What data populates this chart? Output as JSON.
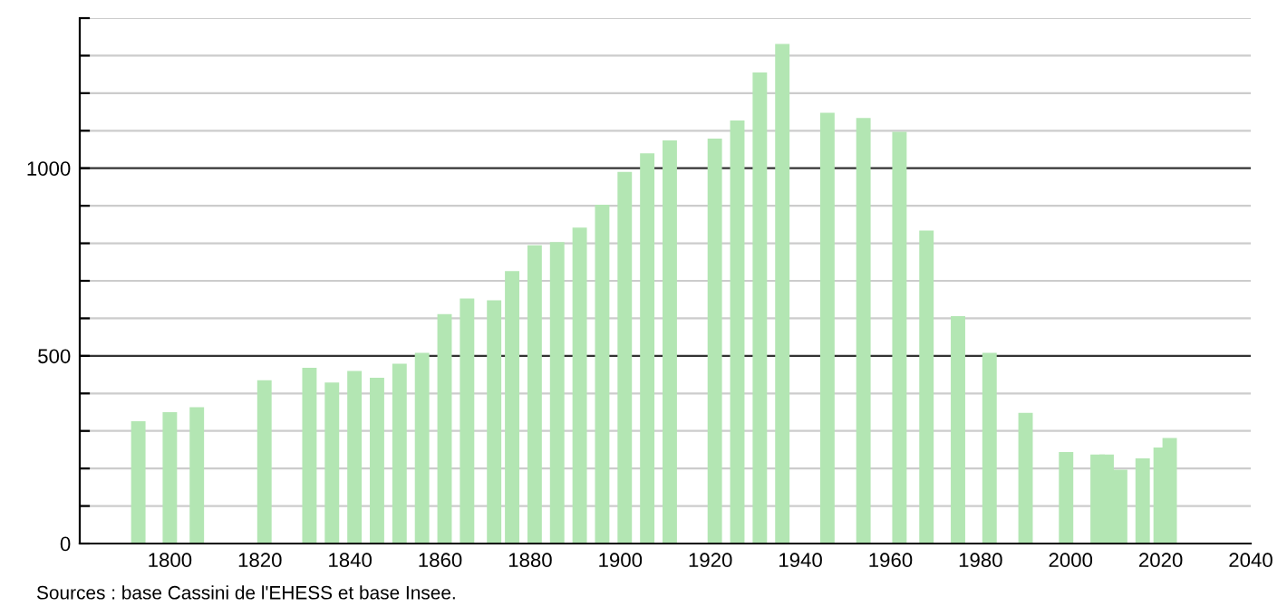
{
  "chart_data": {
    "type": "bar",
    "annotations": [
      "Sources : base Cassini de l'EHESS et base Insee."
    ],
    "x": [
      1793,
      1800,
      1806,
      1821,
      1831,
      1836,
      1841,
      1846,
      1851,
      1856,
      1861,
      1866,
      1872,
      1876,
      1881,
      1886,
      1891,
      1896,
      1901,
      1906,
      1911,
      1921,
      1926,
      1931,
      1936,
      1946,
      1954,
      1962,
      1968,
      1975,
      1982,
      1990,
      1999,
      2006,
      2008,
      2011,
      2016,
      2020,
      2022
    ],
    "values": [
      326,
      350,
      363,
      435,
      468,
      429,
      460,
      442,
      479,
      508,
      611,
      653,
      648,
      726,
      795,
      803,
      842,
      903,
      990,
      1040,
      1074,
      1079,
      1127,
      1255,
      1331,
      1148,
      1134,
      1097,
      834,
      606,
      508,
      348,
      244,
      237,
      237,
      197,
      227,
      256,
      281
    ],
    "color": "#b3e6b3",
    "xlim": [
      1780,
      2040
    ],
    "xticks": [
      1800,
      1820,
      1840,
      1860,
      1880,
      1900,
      1920,
      1940,
      1960,
      1980,
      2000,
      2020,
      2040
    ],
    "ylim": [
      0,
      1400
    ],
    "yticks": [
      0,
      {
        "value": 100,
        "label": null
      },
      {
        "value": 200,
        "label": null
      },
      {
        "value": 300,
        "label": null
      },
      {
        "value": 400,
        "label": null
      },
      500,
      {
        "value": 600,
        "label": null
      },
      {
        "value": 700,
        "label": null
      },
      {
        "value": 800,
        "label": null
      },
      {
        "value": 900,
        "label": null
      },
      1000,
      {
        "value": 1100,
        "label": null
      },
      {
        "value": 1200,
        "label": null
      },
      {
        "value": 1300,
        "label": null
      },
      {
        "value": 1400,
        "label": null
      }
    ],
    "grid": "y"
  }
}
